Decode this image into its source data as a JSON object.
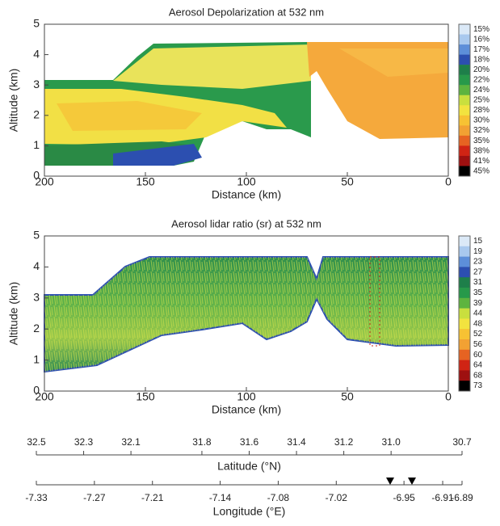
{
  "chart_data": [
    {
      "type": "curtain",
      "title": "Aerosol Depolarization at 532 nm",
      "xlabel": "Distance (km)",
      "ylabel": "Altitude (km)",
      "xlim": [
        200,
        0
      ],
      "xticks": [
        200,
        150,
        100,
        50,
        0
      ],
      "ylim": [
        0,
        5
      ],
      "yticks": [
        0,
        1,
        2,
        3,
        4,
        5
      ],
      "colorbar": {
        "ticks": [
          {
            "value": 15,
            "label": "15%"
          },
          {
            "value": 16,
            "label": "16%"
          },
          {
            "value": 17,
            "label": "17%"
          },
          {
            "value": 18,
            "label": "18%"
          },
          {
            "value": 20,
            "label": "20%"
          },
          {
            "value": 22,
            "label": "22%"
          },
          {
            "value": 24,
            "label": "24%"
          },
          {
            "value": 25,
            "label": "25%"
          },
          {
            "value": 28,
            "label": "28%"
          },
          {
            "value": 30,
            "label": "30%"
          },
          {
            "value": 32,
            "label": "32%"
          },
          {
            "value": 35,
            "label": "35%"
          },
          {
            "value": 38,
            "label": "38%"
          },
          {
            "value": 41,
            "label": "41%"
          },
          {
            "value": 45,
            "label": "45%"
          }
        ],
        "colors": [
          "#dbe9f7",
          "#a9c9ee",
          "#5d8fd9",
          "#2c4fb0",
          "#1e7f4a",
          "#27994a",
          "#5db43f",
          "#c9df3e",
          "#f2e33f",
          "#f7c233",
          "#f2a133",
          "#e66322",
          "#d02414",
          "#9e1010",
          "#000000"
        ]
      }
    },
    {
      "type": "curtain",
      "title": "Aerosol lidar ratio (sr) at 532 nm",
      "xlabel": "Distance (km)",
      "ylabel": "Altitude (km)",
      "xlim": [
        200,
        0
      ],
      "xticks": [
        200,
        150,
        100,
        50,
        0
      ],
      "ylim": [
        0,
        5
      ],
      "yticks": [
        0,
        1,
        2,
        3,
        4,
        5
      ],
      "colorbar": {
        "ticks": [
          15,
          19,
          23,
          27,
          31,
          35,
          39,
          44,
          48,
          52,
          56,
          60,
          64,
          68,
          73
        ],
        "colors": [
          "#dbe9f7",
          "#a9c9ee",
          "#5d8fd9",
          "#2c4fb0",
          "#1e7f4a",
          "#27994a",
          "#5db43f",
          "#c9df3e",
          "#f2e33f",
          "#f7c233",
          "#f2a133",
          "#e66322",
          "#d02414",
          "#9e1010",
          "#000000"
        ]
      }
    },
    {
      "type": "axis",
      "xlabel": "Latitude (°N)",
      "xlim": [
        32.5,
        30.7
      ],
      "xticks": [
        32.5,
        32.3,
        32.1,
        31.8,
        31.6,
        31.4,
        31.2,
        {
          "value": 31,
          "label": "31.0"
        },
        30.7
      ]
    },
    {
      "type": "axis",
      "xlabel": "Longitude (°E)",
      "xlim": [
        -7.33,
        -6.89
      ],
      "xticks": [
        -7.33,
        -7.27,
        -7.21,
        -7.14,
        -7.08,
        -7.02,
        -6.95,
        -6.91,
        -6.89
      ]
    }
  ]
}
